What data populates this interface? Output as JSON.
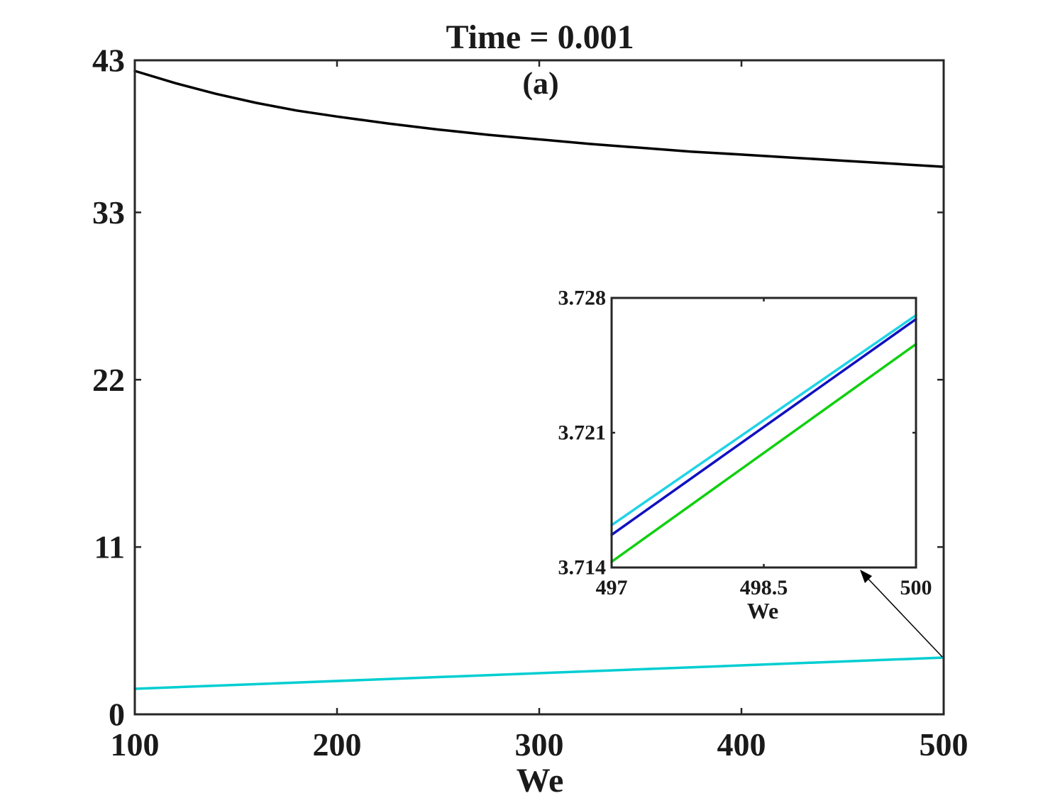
{
  "chart_data": [
    {
      "id": "main",
      "type": "line",
      "title": "Time = 0.001",
      "annotation": "(a)",
      "xlabel": "We",
      "ylabel": "",
      "xlim": [
        100,
        500
      ],
      "ylim": [
        0,
        43
      ],
      "xticks": [
        100,
        200,
        300,
        400,
        500
      ],
      "yticks": [
        0,
        11,
        22,
        33,
        43
      ],
      "xtick_labels": [
        "100",
        "200",
        "300",
        "400",
        "500"
      ],
      "ytick_labels": [
        "0",
        "11",
        "22",
        "33",
        "43"
      ],
      "grid": false,
      "series": [
        {
          "color": "#000000",
          "x": [
            100,
            120,
            140,
            160,
            180,
            200,
            225,
            250,
            275,
            300,
            325,
            350,
            375,
            400,
            425,
            450,
            475,
            500
          ],
          "y": [
            42.3,
            41.5,
            40.8,
            40.2,
            39.7,
            39.3,
            38.85,
            38.45,
            38.1,
            37.8,
            37.5,
            37.25,
            37.0,
            36.8,
            36.6,
            36.4,
            36.2,
            36.0
          ]
        },
        {
          "color": "#00ced1",
          "x": [
            100,
            500
          ],
          "y": [
            1.68,
            3.73
          ]
        }
      ]
    },
    {
      "id": "inset",
      "type": "line",
      "xlabel": "We",
      "xlim": [
        497,
        500
      ],
      "ylim": [
        3.714,
        3.728
      ],
      "xticks": [
        497,
        498.5,
        500
      ],
      "yticks": [
        3.714,
        3.721,
        3.728
      ],
      "xtick_labels": [
        "497",
        "498.5",
        "500"
      ],
      "ytick_labels": [
        "3.714",
        "3.721",
        "3.728"
      ],
      "grid": false,
      "series": [
        {
          "color": "#1fd3e6",
          "x": [
            497,
            500
          ],
          "y": [
            3.7162,
            3.7271
          ]
        },
        {
          "color": "#1010c0",
          "x": [
            497,
            500
          ],
          "y": [
            3.7157,
            3.7269
          ]
        },
        {
          "color": "#10d010",
          "x": [
            497,
            500
          ],
          "y": [
            3.7143,
            3.7256
          ]
        }
      ]
    }
  ]
}
